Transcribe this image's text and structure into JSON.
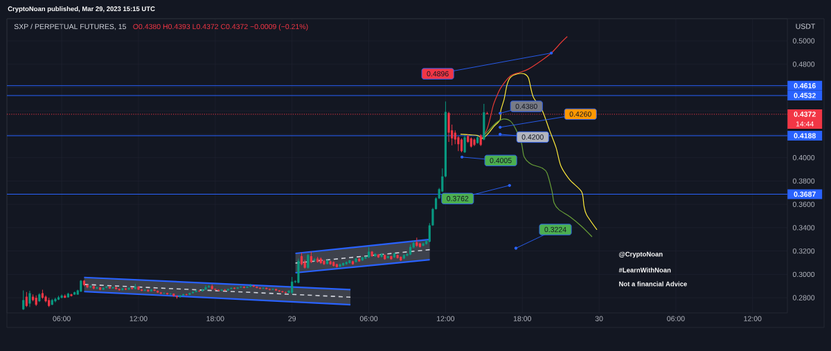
{
  "chart_data": {
    "type": "candlestick",
    "title": "CryptoNoan published, Mar 29, 2023 15:15 UTC",
    "subtitle": "SXP / PERPETUAL FUTURES, 15",
    "ylabel": "USDT",
    "xlim": [
      "2023-03-28T01:43",
      "2023-03-30T14:43"
    ],
    "ylim": [
      0.267,
      0.519
    ],
    "grid": true,
    "xticks": [
      {
        "value": "2023-03-28T06:00",
        "label": "06:00"
      },
      {
        "value": "2023-03-28T12:00",
        "label": "12:00"
      },
      {
        "value": "2023-03-28T18:00",
        "label": "18:00"
      },
      {
        "value": "2023-03-29T00:00",
        "label": "29"
      },
      {
        "value": "2023-03-29T06:00",
        "label": "06:00"
      },
      {
        "value": "2023-03-29T12:00",
        "label": "12:00"
      },
      {
        "value": "2023-03-29T18:00",
        "label": "18:00"
      },
      {
        "value": "2023-03-30T00:00",
        "label": "30"
      },
      {
        "value": "2023-03-30T06:00",
        "label": "06:00"
      },
      {
        "value": "2023-03-30T12:00",
        "label": "12:00"
      }
    ],
    "yticks": [
      {
        "value": 0.28,
        "label": "0.2800"
      },
      {
        "value": 0.3,
        "label": "0.3000"
      },
      {
        "value": 0.32,
        "label": "0.3200"
      },
      {
        "value": 0.34,
        "label": "0.3400"
      },
      {
        "value": 0.36,
        "label": "0.3600"
      },
      {
        "value": 0.38,
        "label": "0.3800"
      },
      {
        "value": 0.4,
        "label": "0.4000"
      },
      {
        "value": 0.42,
        "label": null
      },
      {
        "value": 0.44,
        "label": null
      },
      {
        "value": 0.46,
        "label": null
      },
      {
        "value": 0.48,
        "label": "0.4800"
      },
      {
        "value": 0.5,
        "label": "0.5000"
      }
    ],
    "series": [
      {
        "x": [
          "2023-03-28T03:00",
          "2023-03-28T03:15",
          "2023-03-28T03:30",
          "2023-03-28T03:45",
          "2023-03-28T04:00",
          "2023-03-28T04:15",
          "2023-03-28T04:30",
          "2023-03-28T04:45",
          "2023-03-28T05:00",
          "2023-03-28T05:15",
          "2023-03-28T05:30",
          "2023-03-28T05:45",
          "2023-03-28T06:00",
          "2023-03-28T06:15",
          "2023-03-28T06:30",
          "2023-03-28T06:45",
          "2023-03-28T07:00",
          "2023-03-28T07:15",
          "2023-03-28T07:30",
          "2023-03-28T07:45",
          "2023-03-28T08:00",
          "2023-03-28T08:15",
          "2023-03-28T08:30",
          "2023-03-28T08:45",
          "2023-03-28T09:00",
          "2023-03-28T09:15",
          "2023-03-28T09:30",
          "2023-03-28T09:45",
          "2023-03-28T10:00",
          "2023-03-28T10:15",
          "2023-03-28T10:30",
          "2023-03-28T10:45",
          "2023-03-28T11:00",
          "2023-03-28T11:15",
          "2023-03-28T11:30",
          "2023-03-28T11:45",
          "2023-03-28T12:00",
          "2023-03-28T12:15",
          "2023-03-28T12:30",
          "2023-03-28T12:45",
          "2023-03-28T13:00",
          "2023-03-28T13:15",
          "2023-03-28T13:30",
          "2023-03-28T13:45",
          "2023-03-28T14:00",
          "2023-03-28T14:15",
          "2023-03-28T14:30",
          "2023-03-28T14:45",
          "2023-03-28T15:00",
          "2023-03-28T15:15",
          "2023-03-28T15:30",
          "2023-03-28T15:45",
          "2023-03-28T16:00",
          "2023-03-28T16:15",
          "2023-03-28T16:30",
          "2023-03-28T16:45",
          "2023-03-28T17:00",
          "2023-03-28T17:15",
          "2023-03-28T17:30",
          "2023-03-28T17:45",
          "2023-03-28T18:00",
          "2023-03-28T18:15",
          "2023-03-28T18:30",
          "2023-03-28T18:45",
          "2023-03-28T19:00",
          "2023-03-28T19:15",
          "2023-03-28T19:30",
          "2023-03-28T19:45",
          "2023-03-28T20:00",
          "2023-03-28T20:15",
          "2023-03-28T20:30",
          "2023-03-28T20:45",
          "2023-03-28T21:00",
          "2023-03-28T21:15",
          "2023-03-28T21:30",
          "2023-03-28T21:45",
          "2023-03-28T22:00",
          "2023-03-28T22:15",
          "2023-03-28T22:30",
          "2023-03-28T22:45",
          "2023-03-28T23:00",
          "2023-03-28T23:15",
          "2023-03-28T23:30",
          "2023-03-28T23:45",
          "2023-03-29T00:00",
          "2023-03-29T00:15",
          "2023-03-29T00:30",
          "2023-03-29T00:45",
          "2023-03-29T01:00",
          "2023-03-29T01:15",
          "2023-03-29T01:30",
          "2023-03-29T01:45",
          "2023-03-29T02:00",
          "2023-03-29T02:15",
          "2023-03-29T02:30",
          "2023-03-29T02:45",
          "2023-03-29T03:00",
          "2023-03-29T03:15",
          "2023-03-29T03:30",
          "2023-03-29T03:45",
          "2023-03-29T04:00",
          "2023-03-29T04:15",
          "2023-03-29T04:30",
          "2023-03-29T04:45",
          "2023-03-29T05:00",
          "2023-03-29T05:15",
          "2023-03-29T05:30",
          "2023-03-29T05:45",
          "2023-03-29T06:00",
          "2023-03-29T06:15",
          "2023-03-29T06:30",
          "2023-03-29T06:45",
          "2023-03-29T07:00",
          "2023-03-29T07:15",
          "2023-03-29T07:30",
          "2023-03-29T07:45",
          "2023-03-29T08:00",
          "2023-03-29T08:15",
          "2023-03-29T08:30",
          "2023-03-29T08:45",
          "2023-03-29T09:00",
          "2023-03-29T09:15",
          "2023-03-29T09:30",
          "2023-03-29T09:45",
          "2023-03-29T10:00",
          "2023-03-29T10:15",
          "2023-03-29T10:30",
          "2023-03-29T10:45",
          "2023-03-29T11:00",
          "2023-03-29T11:15",
          "2023-03-29T11:30",
          "2023-03-29T11:45",
          "2023-03-29T12:00",
          "2023-03-29T12:15",
          "2023-03-29T12:30",
          "2023-03-29T12:45",
          "2023-03-29T13:00",
          "2023-03-29T13:15",
          "2023-03-29T13:30",
          "2023-03-29T13:45",
          "2023-03-29T14:00",
          "2023-03-29T14:15",
          "2023-03-29T14:30",
          "2023-03-29T14:45",
          "2023-03-29T15:00",
          "2023-03-29T15:15"
        ],
        "ohlc": [
          [
            0.2701,
            0.2863,
            0.2695,
            0.278
          ],
          [
            0.2809,
            0.2849,
            0.272,
            0.273
          ],
          [
            0.275,
            0.2859,
            0.272,
            0.2839
          ],
          [
            0.2809,
            0.2829,
            0.277,
            0.278
          ],
          [
            0.28,
            0.2819,
            0.273,
            0.274
          ],
          [
            0.277,
            0.2839,
            0.2764,
            0.2829
          ],
          [
            0.2839,
            0.2869,
            0.279,
            0.28
          ],
          [
            0.2809,
            0.2819,
            0.276,
            0.277
          ],
          [
            0.278,
            0.28,
            0.272,
            0.273
          ],
          [
            0.274,
            0.279,
            0.2736,
            0.278
          ],
          [
            0.277,
            0.28,
            0.276,
            0.279
          ],
          [
            0.2784,
            0.2817,
            0.278,
            0.2804
          ],
          [
            0.28,
            0.2829,
            0.2795,
            0.2819
          ],
          [
            0.2817,
            0.2829,
            0.2797,
            0.28
          ],
          [
            0.2804,
            0.2843,
            0.28,
            0.2835
          ],
          [
            0.2829,
            0.2835,
            0.2811,
            0.2815
          ],
          [
            0.2827,
            0.2853,
            0.2825,
            0.2847
          ],
          [
            0.2827,
            0.2869,
            0.2825,
            0.2863
          ],
          [
            0.2853,
            0.2952,
            0.2849,
            0.2946
          ],
          [
            0.2946,
            0.2952,
            0.2899,
            0.2909
          ],
          [
            0.2909,
            0.2915,
            0.2882,
            0.2889
          ],
          [
            0.2889,
            0.2905,
            0.2884,
            0.2899
          ],
          [
            0.2899,
            0.2903,
            0.2872,
            0.2879
          ],
          [
            0.2879,
            0.2896,
            0.2875,
            0.2889
          ],
          [
            0.2889,
            0.2893,
            0.2864,
            0.2869
          ],
          [
            0.2869,
            0.289,
            0.2866,
            0.2885
          ],
          [
            0.2885,
            0.2902,
            0.2881,
            0.2895
          ],
          [
            0.2895,
            0.2899,
            0.2876,
            0.288
          ],
          [
            0.288,
            0.2896,
            0.2877,
            0.289
          ],
          [
            0.289,
            0.2894,
            0.287,
            0.2875
          ],
          [
            0.2875,
            0.2879,
            0.2859,
            0.2865
          ],
          [
            0.2865,
            0.2885,
            0.2862,
            0.288
          ],
          [
            0.288,
            0.2884,
            0.2866,
            0.287
          ],
          [
            0.287,
            0.2889,
            0.2867,
            0.2885
          ],
          [
            0.2885,
            0.289,
            0.2871,
            0.2875
          ],
          [
            0.2875,
            0.2919,
            0.2872,
            0.2895
          ],
          [
            0.2895,
            0.2898,
            0.2866,
            0.287
          ],
          [
            0.287,
            0.2874,
            0.2855,
            0.286
          ],
          [
            0.286,
            0.2873,
            0.2857,
            0.2868
          ],
          [
            0.2868,
            0.2871,
            0.285,
            0.2855
          ],
          [
            0.2855,
            0.2875,
            0.2852,
            0.287
          ],
          [
            0.287,
            0.2873,
            0.2856,
            0.286
          ],
          [
            0.286,
            0.2863,
            0.284,
            0.2845
          ],
          [
            0.2845,
            0.2849,
            0.283,
            0.2835
          ],
          [
            0.2835,
            0.2846,
            0.2831,
            0.284
          ],
          [
            0.284,
            0.2843,
            0.2825,
            0.283
          ],
          [
            0.283,
            0.284,
            0.2826,
            0.2835
          ],
          [
            0.2835,
            0.2838,
            0.281,
            0.2815
          ],
          [
            0.2815,
            0.2819,
            0.2792,
            0.2805
          ],
          [
            0.2805,
            0.2824,
            0.28,
            0.282
          ],
          [
            0.282,
            0.2834,
            0.2816,
            0.283
          ],
          [
            0.283,
            0.2835,
            0.282,
            0.2825
          ],
          [
            0.2825,
            0.2844,
            0.2822,
            0.284
          ],
          [
            0.284,
            0.2855,
            0.2836,
            0.285
          ],
          [
            0.285,
            0.2865,
            0.2846,
            0.286
          ],
          [
            0.286,
            0.2864,
            0.285,
            0.2855
          ],
          [
            0.2855,
            0.2876,
            0.2852,
            0.287
          ],
          [
            0.287,
            0.2905,
            0.2866,
            0.289
          ],
          [
            0.289,
            0.2909,
            0.2885,
            0.29
          ],
          [
            0.29,
            0.2915,
            0.287,
            0.2875
          ],
          [
            0.2875,
            0.288,
            0.2862,
            0.2868
          ],
          [
            0.2868,
            0.2872,
            0.2855,
            0.286
          ],
          [
            0.286,
            0.2875,
            0.2857,
            0.287
          ],
          [
            0.287,
            0.2874,
            0.2858,
            0.2862
          ],
          [
            0.2862,
            0.2879,
            0.2859,
            0.2875
          ],
          [
            0.2875,
            0.289,
            0.2871,
            0.2885
          ],
          [
            0.2885,
            0.2889,
            0.2873,
            0.2878
          ],
          [
            0.2878,
            0.2892,
            0.2875,
            0.2888
          ],
          [
            0.2888,
            0.29,
            0.2884,
            0.2895
          ],
          [
            0.2895,
            0.2898,
            0.2881,
            0.2885
          ],
          [
            0.2885,
            0.2899,
            0.2882,
            0.2895
          ],
          [
            0.2895,
            0.2918,
            0.2891,
            0.2905
          ],
          [
            0.2905,
            0.2909,
            0.2891,
            0.2895
          ],
          [
            0.2895,
            0.2899,
            0.288,
            0.2885
          ],
          [
            0.2885,
            0.2889,
            0.2873,
            0.2878
          ],
          [
            0.2878,
            0.289,
            0.2875,
            0.2885
          ],
          [
            0.2885,
            0.2888,
            0.2871,
            0.2875
          ],
          [
            0.2875,
            0.2879,
            0.2863,
            0.2868
          ],
          [
            0.2868,
            0.288,
            0.2865,
            0.2875
          ],
          [
            0.2875,
            0.2878,
            0.2858,
            0.2862
          ],
          [
            0.2862,
            0.2866,
            0.285,
            0.2855
          ],
          [
            0.2855,
            0.2859,
            0.2843,
            0.2848
          ],
          [
            0.2848,
            0.2852,
            0.2837,
            0.2842
          ],
          [
            0.2842,
            0.2865,
            0.2839,
            0.286
          ],
          [
            0.2843,
            0.2978,
            0.2829,
            0.2938
          ],
          [
            0.2935,
            0.295,
            0.2925,
            0.2942
          ],
          [
            0.2929,
            0.3136,
            0.2923,
            0.3116
          ],
          [
            0.3156,
            0.3186,
            0.3077,
            0.3087
          ],
          [
            0.3106,
            0.3125,
            0.305,
            0.3057
          ],
          [
            0.3057,
            0.3176,
            0.305,
            0.3166
          ],
          [
            0.3156,
            0.3195,
            0.3097,
            0.3106
          ],
          [
            0.312,
            0.314,
            0.311,
            0.313
          ],
          [
            0.3136,
            0.315,
            0.31,
            0.3106
          ],
          [
            0.3136,
            0.3146,
            0.309,
            0.3097
          ],
          [
            0.3116,
            0.3125,
            0.308,
            0.3087
          ],
          [
            0.309,
            0.3125,
            0.3085,
            0.312
          ],
          [
            0.3112,
            0.3118,
            0.3082,
            0.3087
          ],
          [
            0.3106,
            0.3112,
            0.3068,
            0.3073
          ],
          [
            0.3087,
            0.3092,
            0.3058,
            0.3063
          ],
          [
            0.3067,
            0.3092,
            0.3062,
            0.3087
          ],
          [
            0.3077,
            0.3102,
            0.3072,
            0.3097
          ],
          [
            0.3087,
            0.3111,
            0.3082,
            0.3106
          ],
          [
            0.3097,
            0.3125,
            0.3092,
            0.312
          ],
          [
            0.3112,
            0.3117,
            0.3082,
            0.3087
          ],
          [
            0.3106,
            0.3141,
            0.3101,
            0.3136
          ],
          [
            0.3136,
            0.3141,
            0.3107,
            0.3112
          ],
          [
            0.312,
            0.3151,
            0.3115,
            0.3146
          ],
          [
            0.3136,
            0.3155,
            0.3131,
            0.315
          ],
          [
            0.3146,
            0.3235,
            0.314,
            0.3195
          ],
          [
            0.3195,
            0.32,
            0.3151,
            0.3156
          ],
          [
            0.3156,
            0.3181,
            0.3151,
            0.3176
          ],
          [
            0.317,
            0.3175,
            0.3141,
            0.3146
          ],
          [
            0.315,
            0.3181,
            0.3145,
            0.3176
          ],
          [
            0.3166,
            0.3171,
            0.3125,
            0.313
          ],
          [
            0.314,
            0.3161,
            0.3135,
            0.3156
          ],
          [
            0.3156,
            0.3161,
            0.3125,
            0.313
          ],
          [
            0.3146,
            0.3185,
            0.3141,
            0.318
          ],
          [
            0.3166,
            0.3171,
            0.3135,
            0.314
          ],
          [
            0.315,
            0.3155,
            0.3115,
            0.312
          ],
          [
            0.3136,
            0.3171,
            0.3131,
            0.3166
          ],
          [
            0.316,
            0.3181,
            0.3155,
            0.3176
          ],
          [
            0.317,
            0.3255,
            0.3165,
            0.3235
          ],
          [
            0.323,
            0.329,
            0.3225,
            0.327
          ],
          [
            0.3275,
            0.3315,
            0.3235,
            0.3245
          ],
          [
            0.3265,
            0.327,
            0.323,
            0.3235
          ],
          [
            0.3245,
            0.327,
            0.324,
            0.3265
          ],
          [
            0.326,
            0.3295,
            0.3255,
            0.3285
          ],
          [
            0.328,
            0.344,
            0.3275,
            0.342
          ],
          [
            0.342,
            0.357,
            0.3415,
            0.356
          ],
          [
            0.356,
            0.366,
            0.3555,
            0.3651
          ],
          [
            0.3651,
            0.374,
            0.3645,
            0.373
          ],
          [
            0.371,
            0.3908,
            0.3705,
            0.3839
          ],
          [
            0.3839,
            0.4481,
            0.383,
            0.4392
          ],
          [
            0.4382,
            0.4392,
            0.4135,
            0.4214
          ],
          [
            0.4234,
            0.4283,
            0.4105,
            0.4165
          ],
          [
            0.4214,
            0.4234,
            0.4115,
            0.4155
          ],
          [
            0.4174,
            0.4185,
            0.4056,
            0.4115
          ],
          [
            0.4155,
            0.4165,
            0.4046,
            0.4056
          ],
          [
            0.4046,
            0.4194,
            0.404,
            0.4174
          ],
          [
            0.4185,
            0.42,
            0.4125,
            0.4135
          ],
          [
            0.4165,
            0.4175,
            0.4085,
            0.4095
          ],
          [
            0.4155,
            0.4165,
            0.4099,
            0.4109
          ],
          [
            0.4125,
            0.4185,
            0.412,
            0.4174
          ],
          [
            0.419,
            0.42,
            0.4099,
            0.4109
          ],
          [
            0.4155,
            0.4461,
            0.415,
            0.4388
          ],
          [
            0.438,
            0.4393,
            0.4372,
            0.4372
          ]
        ],
        "colors": [
          "#089981",
          "#f23645",
          "#089981",
          "#f23645",
          "#f23645",
          "#089981",
          "#f23645",
          "#f23645",
          "#f23645",
          "#089981",
          "#089981",
          "#089981",
          "#089981",
          "#f23645",
          "#089981",
          "#f23645",
          "#089981",
          "#089981",
          "#089981",
          "#f23645",
          "#f23645",
          "#089981",
          "#f23645",
          "#089981",
          "#f23645",
          "#089981",
          "#089981",
          "#f23645",
          "#089981",
          "#f23645",
          "#f23645",
          "#089981",
          "#f23645",
          "#089981",
          "#f23645",
          "#089981",
          "#f23645",
          "#f23645",
          "#089981",
          "#f23645",
          "#089981",
          "#f23645",
          "#f23645",
          "#f23645",
          "#089981",
          "#f23645",
          "#089981",
          "#f23645",
          "#f23645",
          "#089981",
          "#089981",
          "#f23645",
          "#089981",
          "#089981",
          "#089981",
          "#f23645",
          "#089981",
          "#089981",
          "#089981",
          "#f23645",
          "#f23645",
          "#f23645",
          "#089981",
          "#f23645",
          "#089981",
          "#089981",
          "#f23645",
          "#089981",
          "#089981",
          "#f23645",
          "#089981",
          "#089981",
          "#f23645",
          "#f23645",
          "#f23645",
          "#089981",
          "#f23645",
          "#f23645",
          "#089981",
          "#f23645",
          "#f23645",
          "#f23645",
          "#f23645",
          "#089981",
          "#089981",
          "#089981",
          "#089981",
          "#f23645",
          "#f23645",
          "#089981",
          "#f23645",
          "#089981",
          "#f23645",
          "#f23645",
          "#f23645",
          "#089981",
          "#f23645",
          "#f23645",
          "#f23645",
          "#089981",
          "#089981",
          "#089981",
          "#089981",
          "#f23645",
          "#089981",
          "#f23645",
          "#089981",
          "#089981",
          "#089981",
          "#f23645",
          "#089981",
          "#f23645",
          "#089981",
          "#f23645",
          "#089981",
          "#f23645",
          "#089981",
          "#f23645",
          "#f23645",
          "#089981",
          "#089981",
          "#089981",
          "#089981",
          "#f23645",
          "#f23645",
          "#089981",
          "#089981",
          "#089981",
          "#089981",
          "#089981",
          "#089981",
          "#089981",
          "#089981",
          "#f23645",
          "#f23645",
          "#f23645",
          "#f23645",
          "#f23645",
          "#089981",
          "#f23645",
          "#f23645",
          "#f23645",
          "#089981",
          "#f23645",
          "#089981",
          "#f23645"
        ]
      },
      {
        "type": "line",
        "color": "#d1d4dc",
        "line_style": "dashed",
        "x": [
          "2023-03-28T07:45",
          "2023-03-29T04:34"
        ],
        "values": [
          0.2914,
          0.2805
        ],
        "lower": [
          0.2853,
          0.2741
        ],
        "upper": [
          0.2974,
          0.2869
        ]
      },
      {
        "type": "line",
        "color": "#2962ff",
        "x": [
          "2023-03-28T07:45",
          "2023-03-29T04:34"
        ],
        "values": [
          0.2974,
          0.2869
        ]
      },
      {
        "type": "line",
        "color": "#2962ff",
        "x": [
          "2023-03-28T07:45",
          "2023-03-29T04:34"
        ],
        "values": [
          0.2853,
          0.2741
        ]
      },
      {
        "type": "line",
        "color": "#d1d4dc",
        "line_style": "dashed",
        "x": [
          "2023-03-29T00:16",
          "2023-03-29T10:46"
        ],
        "values": [
          0.3097,
          0.3212
        ],
        "lower": [
          0.3014,
          0.3126
        ],
        "upper": [
          0.318,
          0.3299
        ]
      },
      {
        "type": "line",
        "color": "#2962ff",
        "x": [
          "2023-03-29T00:16",
          "2023-03-29T10:46"
        ],
        "values": [
          0.318,
          0.3299
        ]
      },
      {
        "type": "line",
        "color": "#2962ff",
        "x": [
          "2023-03-29T00:16",
          "2023-03-29T10:46"
        ],
        "values": [
          0.3014,
          0.3126
        ]
      },
      {
        "type": "line",
        "color": "#e53935",
        "x": [
          "2023-03-29T14:47",
          "2023-03-29T15:14",
          "2023-03-29T15:30",
          "2023-03-29T15:43",
          "2023-03-29T15:59",
          "2023-03-29T16:19",
          "2023-03-29T17:04",
          "2023-03-29T17:46",
          "2023-03-29T18:28",
          "2023-03-29T19:33",
          "2023-03-29T20:19",
          "2023-03-29T21:01",
          "2023-03-29T21:31"
        ],
        "values": [
          0.4153,
          0.4242,
          0.4343,
          0.4444,
          0.4521,
          0.4598,
          0.4699,
          0.4729,
          0.4758,
          0.4836,
          0.4901,
          0.4984,
          0.5037
        ]
      },
      {
        "type": "line",
        "color": "#ffeb3b",
        "x": [
          "2023-03-29T13:10",
          "2023-03-29T13:59",
          "2023-03-29T14:31",
          "2023-03-29T14:54",
          "2023-03-29T15:20",
          "2023-03-29T15:46",
          "2023-03-29T16:16",
          "2023-03-29T16:19",
          "2023-03-29T16:35",
          "2023-03-29T16:48",
          "2023-03-29T17:04",
          "2023-03-29T17:37",
          "2023-03-29T18:09",
          "2023-03-29T18:29",
          "2023-03-29T18:51",
          "2023-03-29T19:34",
          "2023-03-29T20:06",
          "2023-03-29T20:38",
          "2023-03-29T21:01",
          "2023-03-29T21:43",
          "2023-03-29T22:38",
          "2023-03-29T22:49",
          "2023-03-29T23:01",
          "2023-03-29T23:50"
        ],
        "values": [
          0.4201,
          0.4195,
          0.4189,
          0.4165,
          0.4207,
          0.4266,
          0.4325,
          0.4402,
          0.4503,
          0.4622,
          0.4687,
          0.4717,
          0.4717,
          0.4681,
          0.4521,
          0.4402,
          0.4242,
          0.4088,
          0.3928,
          0.3809,
          0.3708,
          0.3589,
          0.3512,
          0.3382
        ]
      },
      {
        "type": "line",
        "color": "#689f38",
        "x": [
          "2023-03-29T14:54",
          "2023-03-29T15:27",
          "2023-03-29T15:59",
          "2023-03-29T16:32",
          "2023-03-29T17:04",
          "2023-03-29T17:30",
          "2023-03-29T17:56",
          "2023-03-29T18:09",
          "2023-03-29T18:41",
          "2023-03-29T19:34",
          "2023-03-29T19:56",
          "2023-03-29T20:19",
          "2023-03-29T20:29",
          "2023-03-29T20:52",
          "2023-03-29T21:43",
          "2023-03-29T22:38",
          "2023-03-29T23:27"
        ],
        "values": [
          0.4177,
          0.4242,
          0.4301,
          0.4331,
          0.4313,
          0.4242,
          0.4123,
          0.4005,
          0.3945,
          0.391,
          0.3868,
          0.3714,
          0.3613,
          0.3554,
          0.3494,
          0.3411,
          0.3322
        ]
      }
    ],
    "ref_lines": [
      {
        "axis": "y",
        "value": 0.4616,
        "label": "0.4616",
        "color": "#2962ff"
      },
      {
        "axis": "y",
        "value": 0.4532,
        "label": "0.4532",
        "color": "#2962ff"
      },
      {
        "axis": "y",
        "value": 0.4372,
        "label": "0.4372",
        "color": "#f23645",
        "line_style": "dotted"
      },
      {
        "axis": "y",
        "value": 0.4188,
        "label": "0.4188",
        "color": "#2962ff"
      },
      {
        "axis": "y",
        "value": 0.3687,
        "label": "0.3687",
        "color": "#2962ff"
      }
    ],
    "annotations": [
      "O0.4380 H0.4393 L0.4372 C0.4372 −0.0009 (−0.21%)",
      "14:44",
      "@CryptoNoan",
      "#LearnWithNoan",
      "Not a financial Advice",
      {
        "text": "0.4896",
        "x": "2023-03-29T20:16",
        "y": 0.4896
      },
      {
        "text": "0.4380",
        "x": "2023-03-29T16:16",
        "y": 0.438
      },
      {
        "text": "0.4260",
        "x": "2023-03-29T16:16",
        "y": 0.426
      },
      {
        "text": "0.4200",
        "x": "2023-03-29T16:16",
        "y": 0.42
      },
      {
        "text": "0.4005",
        "x": "2023-03-29T13:17",
        "y": 0.4005
      },
      {
        "text": "0.3762",
        "x": "2023-03-29T17:00",
        "y": 0.3762
      },
      {
        "text": "0.3224",
        "x": "2023-03-29T17:30",
        "y": 0.3224
      }
    ]
  }
}
